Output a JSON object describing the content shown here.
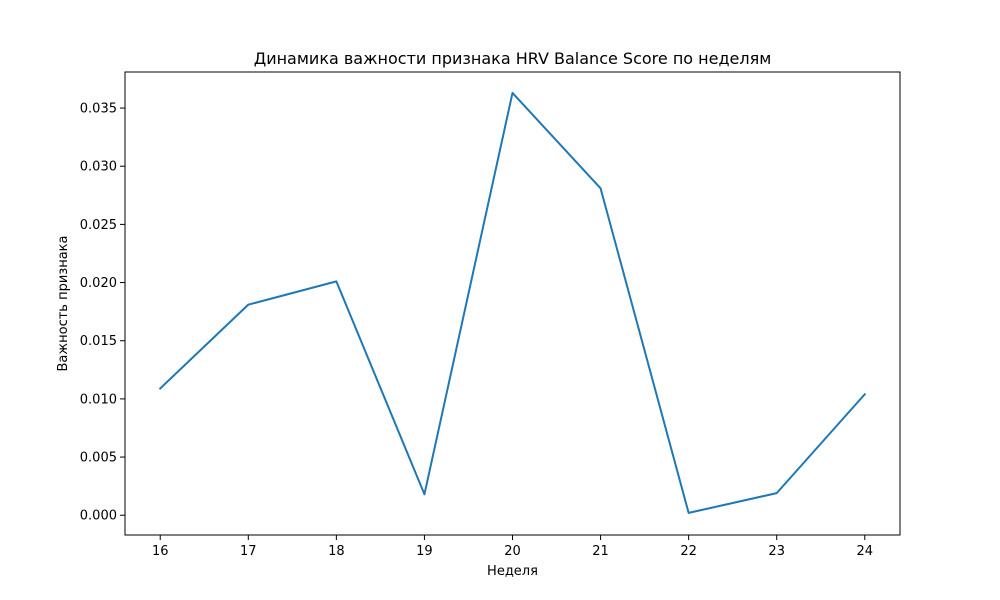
{
  "chart_data": {
    "type": "line",
    "title": "Динамика важности признака HRV Balance Score по неделям",
    "xlabel": "Неделя",
    "ylabel": "Важность признака",
    "x": [
      16,
      17,
      18,
      19,
      20,
      21,
      22,
      23,
      24
    ],
    "series": [
      {
        "values": [
          0.0109,
          0.0181,
          0.0201,
          0.0018,
          0.0363,
          0.0281,
          0.0002,
          0.0019,
          0.0104
        ],
        "color": "#1f77b4"
      }
    ],
    "xlim": [
      15.6,
      24.4
    ],
    "ylim": [
      -0.0017,
      0.0381
    ],
    "xticks": [
      16,
      17,
      18,
      19,
      20,
      21,
      22,
      23,
      24
    ],
    "yticks": [
      0.0,
      0.005,
      0.01,
      0.015,
      0.02,
      0.025,
      0.03,
      0.035
    ],
    "ytick_labels": [
      "0.000",
      "0.005",
      "0.010",
      "0.015",
      "0.020",
      "0.025",
      "0.030",
      "0.035"
    ],
    "grid": false,
    "legend": false
  }
}
